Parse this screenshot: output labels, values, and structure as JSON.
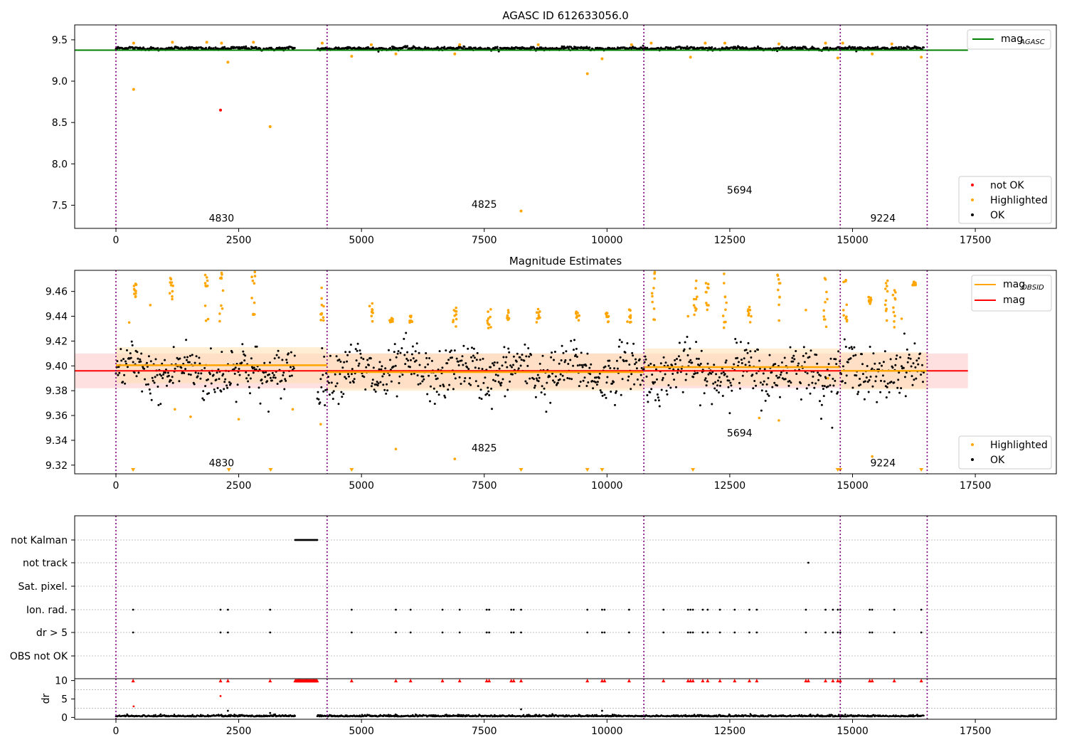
{
  "chart_data": [
    {
      "type": "scatter",
      "title": "AGASC ID 612633056.0",
      "xlim": [
        -840,
        19150
      ],
      "ylim": [
        7.22,
        9.68
      ],
      "x_ticks": [
        0,
        2500,
        5000,
        7500,
        10000,
        12500,
        15000,
        17500
      ],
      "x_tick_labels": [
        "0",
        "2500",
        "5000",
        "7500",
        "10000",
        "12500",
        "15000",
        "17500"
      ],
      "y_ticks": [
        7.5,
        8.0,
        8.5,
        9.0,
        9.5
      ],
      "y_tick_labels": [
        "7.5",
        "8.0",
        "8.5",
        "9.0",
        "9.5"
      ],
      "obsid_boundaries": [
        0,
        4300,
        10750,
        14750,
        16520
      ],
      "obsid_labels": [
        {
          "text": "4830",
          "x": 2150,
          "y": 7.3
        },
        {
          "text": "4825",
          "x": 7500,
          "y": 7.47
        },
        {
          "text": "5694",
          "x": 12700,
          "y": 7.64
        },
        {
          "text": "9224",
          "x": 15620,
          "y": 7.3
        }
      ],
      "lines": [
        {
          "name": "mag_AGASC",
          "color": "#008000",
          "y": 9.375,
          "x_range": [
            -840,
            17350
          ]
        }
      ],
      "legend_top": {
        "position": "top-right",
        "entries": [
          {
            "label": "mag",
            "sub": "AGASC",
            "color": "#008000"
          }
        ]
      },
      "legend_bottom": {
        "position": "bottom-right",
        "entries": [
          {
            "label": "not OK",
            "color": "#ff0000"
          },
          {
            "label": "Highlighted",
            "color": "#ffa500"
          },
          {
            "label": "OK",
            "color": "#000000"
          }
        ]
      },
      "band_segments": [
        [
          0,
          3650
        ],
        [
          4100,
          16450
        ]
      ],
      "band": {
        "center": 9.395,
        "spread": 0.02
      },
      "highlighted_points": [
        [
          360,
          8.9
        ],
        [
          2280,
          9.23
        ],
        [
          3140,
          8.45
        ],
        [
          4800,
          9.3
        ],
        [
          5700,
          9.33
        ],
        [
          6900,
          9.33
        ],
        [
          8250,
          7.43
        ],
        [
          9600,
          9.09
        ],
        [
          9900,
          9.27
        ],
        [
          11700,
          9.29
        ],
        [
          14700,
          9.28
        ],
        [
          15400,
          9.33
        ],
        [
          16400,
          9.29
        ],
        [
          360,
          9.46
        ],
        [
          1150,
          9.47
        ],
        [
          1850,
          9.47
        ],
        [
          2150,
          9.46
        ],
        [
          2800,
          9.47
        ],
        [
          4200,
          9.46
        ],
        [
          5200,
          9.44
        ],
        [
          7000,
          9.44
        ],
        [
          8600,
          9.44
        ],
        [
          10500,
          9.44
        ],
        [
          10900,
          9.46
        ],
        [
          12000,
          9.46
        ],
        [
          12400,
          9.46
        ],
        [
          13500,
          9.45
        ],
        [
          14450,
          9.46
        ],
        [
          14800,
          9.46
        ],
        [
          15800,
          9.45
        ]
      ],
      "not_ok_points": [
        [
          2130,
          8.65
        ]
      ]
    },
    {
      "type": "scatter",
      "title": "Magnitude Estimates",
      "xlim": [
        -840,
        19150
      ],
      "ylim": [
        9.313,
        9.477
      ],
      "x_ticks": [
        0,
        2500,
        5000,
        7500,
        10000,
        12500,
        15000,
        17500
      ],
      "x_tick_labels": [
        "0",
        "2500",
        "5000",
        "7500",
        "10000",
        "12500",
        "15000",
        "17500"
      ],
      "y_ticks": [
        9.32,
        9.34,
        9.36,
        9.38,
        9.4,
        9.42,
        9.44,
        9.46
      ],
      "y_tick_labels": [
        "9.32",
        "9.34",
        "9.36",
        "9.38",
        "9.40",
        "9.42",
        "9.44",
        "9.46"
      ],
      "obsid_boundaries": [
        0,
        4300,
        10750,
        14750,
        16520
      ],
      "obsid_labels": [
        {
          "text": "4830",
          "x": 2150,
          "y": 9.319
        },
        {
          "text": "4825",
          "x": 7500,
          "y": 9.331
        },
        {
          "text": "5694",
          "x": 12700,
          "y": 9.343
        },
        {
          "text": "9224",
          "x": 15620,
          "y": 9.319
        }
      ],
      "mag": {
        "value": 9.396,
        "lower": 9.382,
        "upper": 9.41,
        "x_range": [
          -840,
          17350
        ],
        "color": "#ff0000",
        "fill": "#ffcccc"
      },
      "mag_obsid": [
        {
          "x_range": [
            0,
            4300
          ],
          "value": 9.4005,
          "lower": 9.386,
          "upper": 9.415
        },
        {
          "x_range": [
            4300,
            10750
          ],
          "value": 9.395,
          "lower": 9.38,
          "upper": 9.41
        },
        {
          "x_range": [
            10750,
            14750
          ],
          "value": 9.399,
          "lower": 9.384,
          "upper": 9.414
        },
        {
          "x_range": [
            14750,
            16520
          ],
          "value": 9.396,
          "lower": 9.381,
          "upper": 9.411
        }
      ],
      "legend_top": {
        "position": "top-right",
        "entries": [
          {
            "label": "mag",
            "sub": "OBSID",
            "color": "#ffa500"
          },
          {
            "label": "mag",
            "sub": "",
            "color": "#ff0000"
          }
        ]
      },
      "legend_bottom": {
        "position": "bottom-right",
        "entries": [
          {
            "label": "Highlighted",
            "color": "#ffa500"
          },
          {
            "label": "OK",
            "color": "#000000"
          }
        ]
      },
      "band_segments": [
        [
          0,
          3650
        ],
        [
          4100,
          16450
        ]
      ],
      "band": {
        "center": 9.395,
        "spread": 0.022
      },
      "highlighted_columns": [
        [
          400,
          9.455,
          9.467
        ],
        [
          1130,
          9.451,
          9.472
        ],
        [
          1850,
          9.435,
          9.477
        ],
        [
          2150,
          9.435,
          9.477
        ],
        [
          2800,
          9.44,
          9.477
        ],
        [
          4200,
          9.435,
          9.465
        ],
        [
          5200,
          9.435,
          9.452
        ],
        [
          5600,
          9.435,
          9.44
        ],
        [
          6000,
          9.435,
          9.441
        ],
        [
          6900,
          9.43,
          9.447
        ],
        [
          7600,
          9.43,
          9.446
        ],
        [
          8000,
          9.435,
          9.446
        ],
        [
          8600,
          9.435,
          9.446
        ],
        [
          9400,
          9.435,
          9.445
        ],
        [
          10000,
          9.435,
          9.443
        ],
        [
          10450,
          9.435,
          9.446
        ],
        [
          10950,
          9.435,
          9.477
        ],
        [
          11800,
          9.435,
          9.47
        ],
        [
          12050,
          9.435,
          9.472
        ],
        [
          12400,
          9.43,
          9.475
        ],
        [
          12900,
          9.43,
          9.455
        ],
        [
          13500,
          9.435,
          9.475
        ],
        [
          14450,
          9.43,
          9.475
        ],
        [
          14850,
          9.435,
          9.473
        ],
        [
          15350,
          9.45,
          9.457
        ],
        [
          15700,
          9.435,
          9.469
        ],
        [
          15850,
          9.43,
          9.47
        ],
        [
          16250,
          9.465,
          9.468
        ]
      ],
      "highlighted_points": [
        [
          270,
          9.435
        ],
        [
          700,
          9.449
        ],
        [
          1200,
          9.365
        ],
        [
          1520,
          9.359
        ],
        [
          2500,
          9.357
        ],
        [
          3600,
          9.365
        ],
        [
          4170,
          9.353
        ],
        [
          5700,
          9.333
        ],
        [
          6900,
          9.325
        ],
        [
          11650,
          9.44
        ],
        [
          13100,
          9.358
        ],
        [
          13500,
          9.356
        ],
        [
          14050,
          9.445
        ],
        [
          14500,
          9.39
        ],
        [
          15400,
          9.327
        ],
        [
          16000,
          9.438
        ]
      ],
      "offscale_markers": [
        350,
        2300,
        3150,
        4800,
        8250,
        9600,
        9900,
        11750,
        14700,
        14750,
        16400
      ]
    },
    {
      "type": "scatter",
      "title": "",
      "xlim": [
        -840,
        19150
      ],
      "x_ticks": [
        0,
        2500,
        5000,
        7500,
        10000,
        12500,
        15000,
        17500
      ],
      "x_tick_labels": [
        "0",
        "2500",
        "5000",
        "7500",
        "10000",
        "12500",
        "15000",
        "17500"
      ],
      "obsid_boundaries": [
        0,
        4300,
        10750,
        14750,
        16520
      ],
      "flag_rows": [
        "not Kalman",
        "not track",
        "Sat. pixel.",
        "Ion. rad.",
        "dr > 5",
        "OBS not OK"
      ],
      "flags": {
        "not Kalman": {
          "segments": [
            [
              3650,
              4100
            ]
          ]
        },
        "not track": {
          "points": [
            14100
          ]
        },
        "Sat. pixel.": {
          "points": []
        },
        "Ion. rad.": {
          "points": [
            350,
            2130,
            2280,
            3140,
            4800,
            5700,
            6000,
            6650,
            7000,
            7550,
            7600,
            8050,
            8100,
            8250,
            9600,
            9900,
            9950,
            10450,
            11150,
            11650,
            11700,
            11750,
            11950,
            12050,
            12300,
            12600,
            12900,
            13050,
            14050,
            14450,
            14600,
            14700,
            14750,
            15350,
            15400,
            15850,
            16400
          ]
        },
        "dr > 5": {
          "points": [
            350,
            2130,
            2280,
            3140,
            4800,
            5700,
            6000,
            6650,
            7000,
            7550,
            7600,
            8050,
            8100,
            8250,
            9600,
            9900,
            9950,
            10450,
            11150,
            11650,
            11700,
            11750,
            11950,
            12050,
            12300,
            12600,
            12900,
            13050,
            14050,
            14450,
            14600,
            14700,
            14750,
            15350,
            15400,
            15850,
            16400
          ]
        },
        "OBS not OK": {
          "points": []
        }
      },
      "dr_label": "dr",
      "dr_ylim": [
        -0.5,
        10.5
      ],
      "dr_ticks": [
        0,
        5,
        10
      ],
      "dr_tick_labels": [
        "0",
        "5",
        "10"
      ],
      "dr_clipped_segment": [
        3650,
        4100
      ],
      "dr_clipped_points": [
        350,
        2130,
        2280,
        3140,
        4800,
        5700,
        6000,
        6650,
        7000,
        7550,
        7600,
        8050,
        8100,
        8250,
        9600,
        9900,
        9950,
        10450,
        11150,
        11650,
        11700,
        11750,
        11950,
        12050,
        12300,
        12600,
        12900,
        13050,
        14050,
        14100,
        14450,
        14600,
        14700,
        14750,
        15350,
        15400,
        15850,
        16400
      ],
      "dr_points": [
        [
          360,
          3.0
        ],
        [
          2130,
          5.8
        ],
        [
          2280,
          1.8
        ],
        [
          8250,
          2.2
        ],
        [
          9900,
          1.8
        ],
        [
          3140,
          1.2
        ]
      ]
    }
  ]
}
